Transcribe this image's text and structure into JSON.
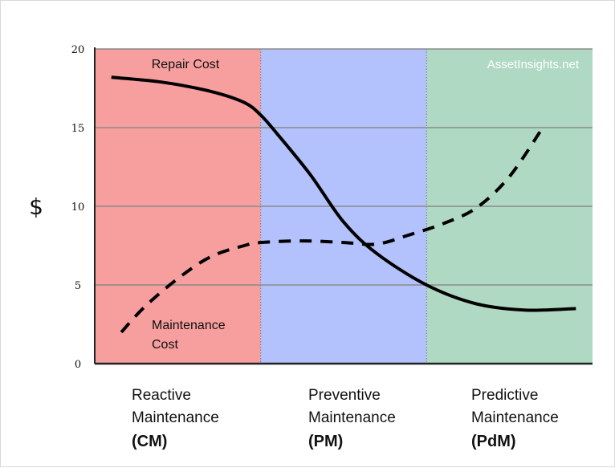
{
  "chart_data": {
    "type": "line",
    "ylabel": "$",
    "ylim": [
      0,
      20
    ],
    "yticks": [
      "0",
      "5",
      "10",
      "15",
      "20"
    ],
    "watermark": "AssetInsights.net",
    "colors": {
      "region_cm": "#f79e9e",
      "region_pm": "#b3c2fc",
      "region_pdm": "#b0d9c3",
      "lines": "#000000"
    },
    "regions": [
      {
        "line1": "Reactive",
        "line2": "Maintenance",
        "abbr": "(CM)",
        "x_range": [
          0,
          1
        ]
      },
      {
        "line1": "Preventive",
        "line2": "Maintenance",
        "abbr": "(PM)",
        "x_range": [
          1,
          2
        ]
      },
      {
        "line1": "Predictive",
        "line2": "Maintenance",
        "abbr": "(PdM)",
        "x_range": [
          2,
          3
        ]
      }
    ],
    "series": [
      {
        "name": "Repair Cost",
        "style": "solid",
        "x": [
          0.1,
          0.4,
          0.7,
          0.9,
          1.0,
          1.1,
          1.3,
          1.5,
          1.7,
          2.0,
          2.3,
          2.6,
          2.9
        ],
        "y": [
          18.2,
          17.9,
          17.3,
          16.6,
          15.8,
          14.6,
          12.0,
          9.0,
          7.0,
          5.0,
          3.8,
          3.4,
          3.5
        ]
      },
      {
        "name": "Maintenance Cost",
        "style": "dashed",
        "x": [
          0.16,
          0.3,
          0.5,
          0.7,
          0.9,
          1.0,
          1.25,
          1.5,
          1.7,
          1.9,
          2.1,
          2.3,
          2.5,
          2.7
        ],
        "y": [
          2.0,
          3.6,
          5.4,
          6.8,
          7.5,
          7.7,
          7.8,
          7.7,
          7.6,
          8.2,
          8.9,
          9.9,
          11.9,
          15.0
        ]
      }
    ],
    "annotations": {
      "repair_cost": "Repair Cost",
      "maintenance_cost_line1": "Maintenance",
      "maintenance_cost_line2": "Cost"
    }
  }
}
